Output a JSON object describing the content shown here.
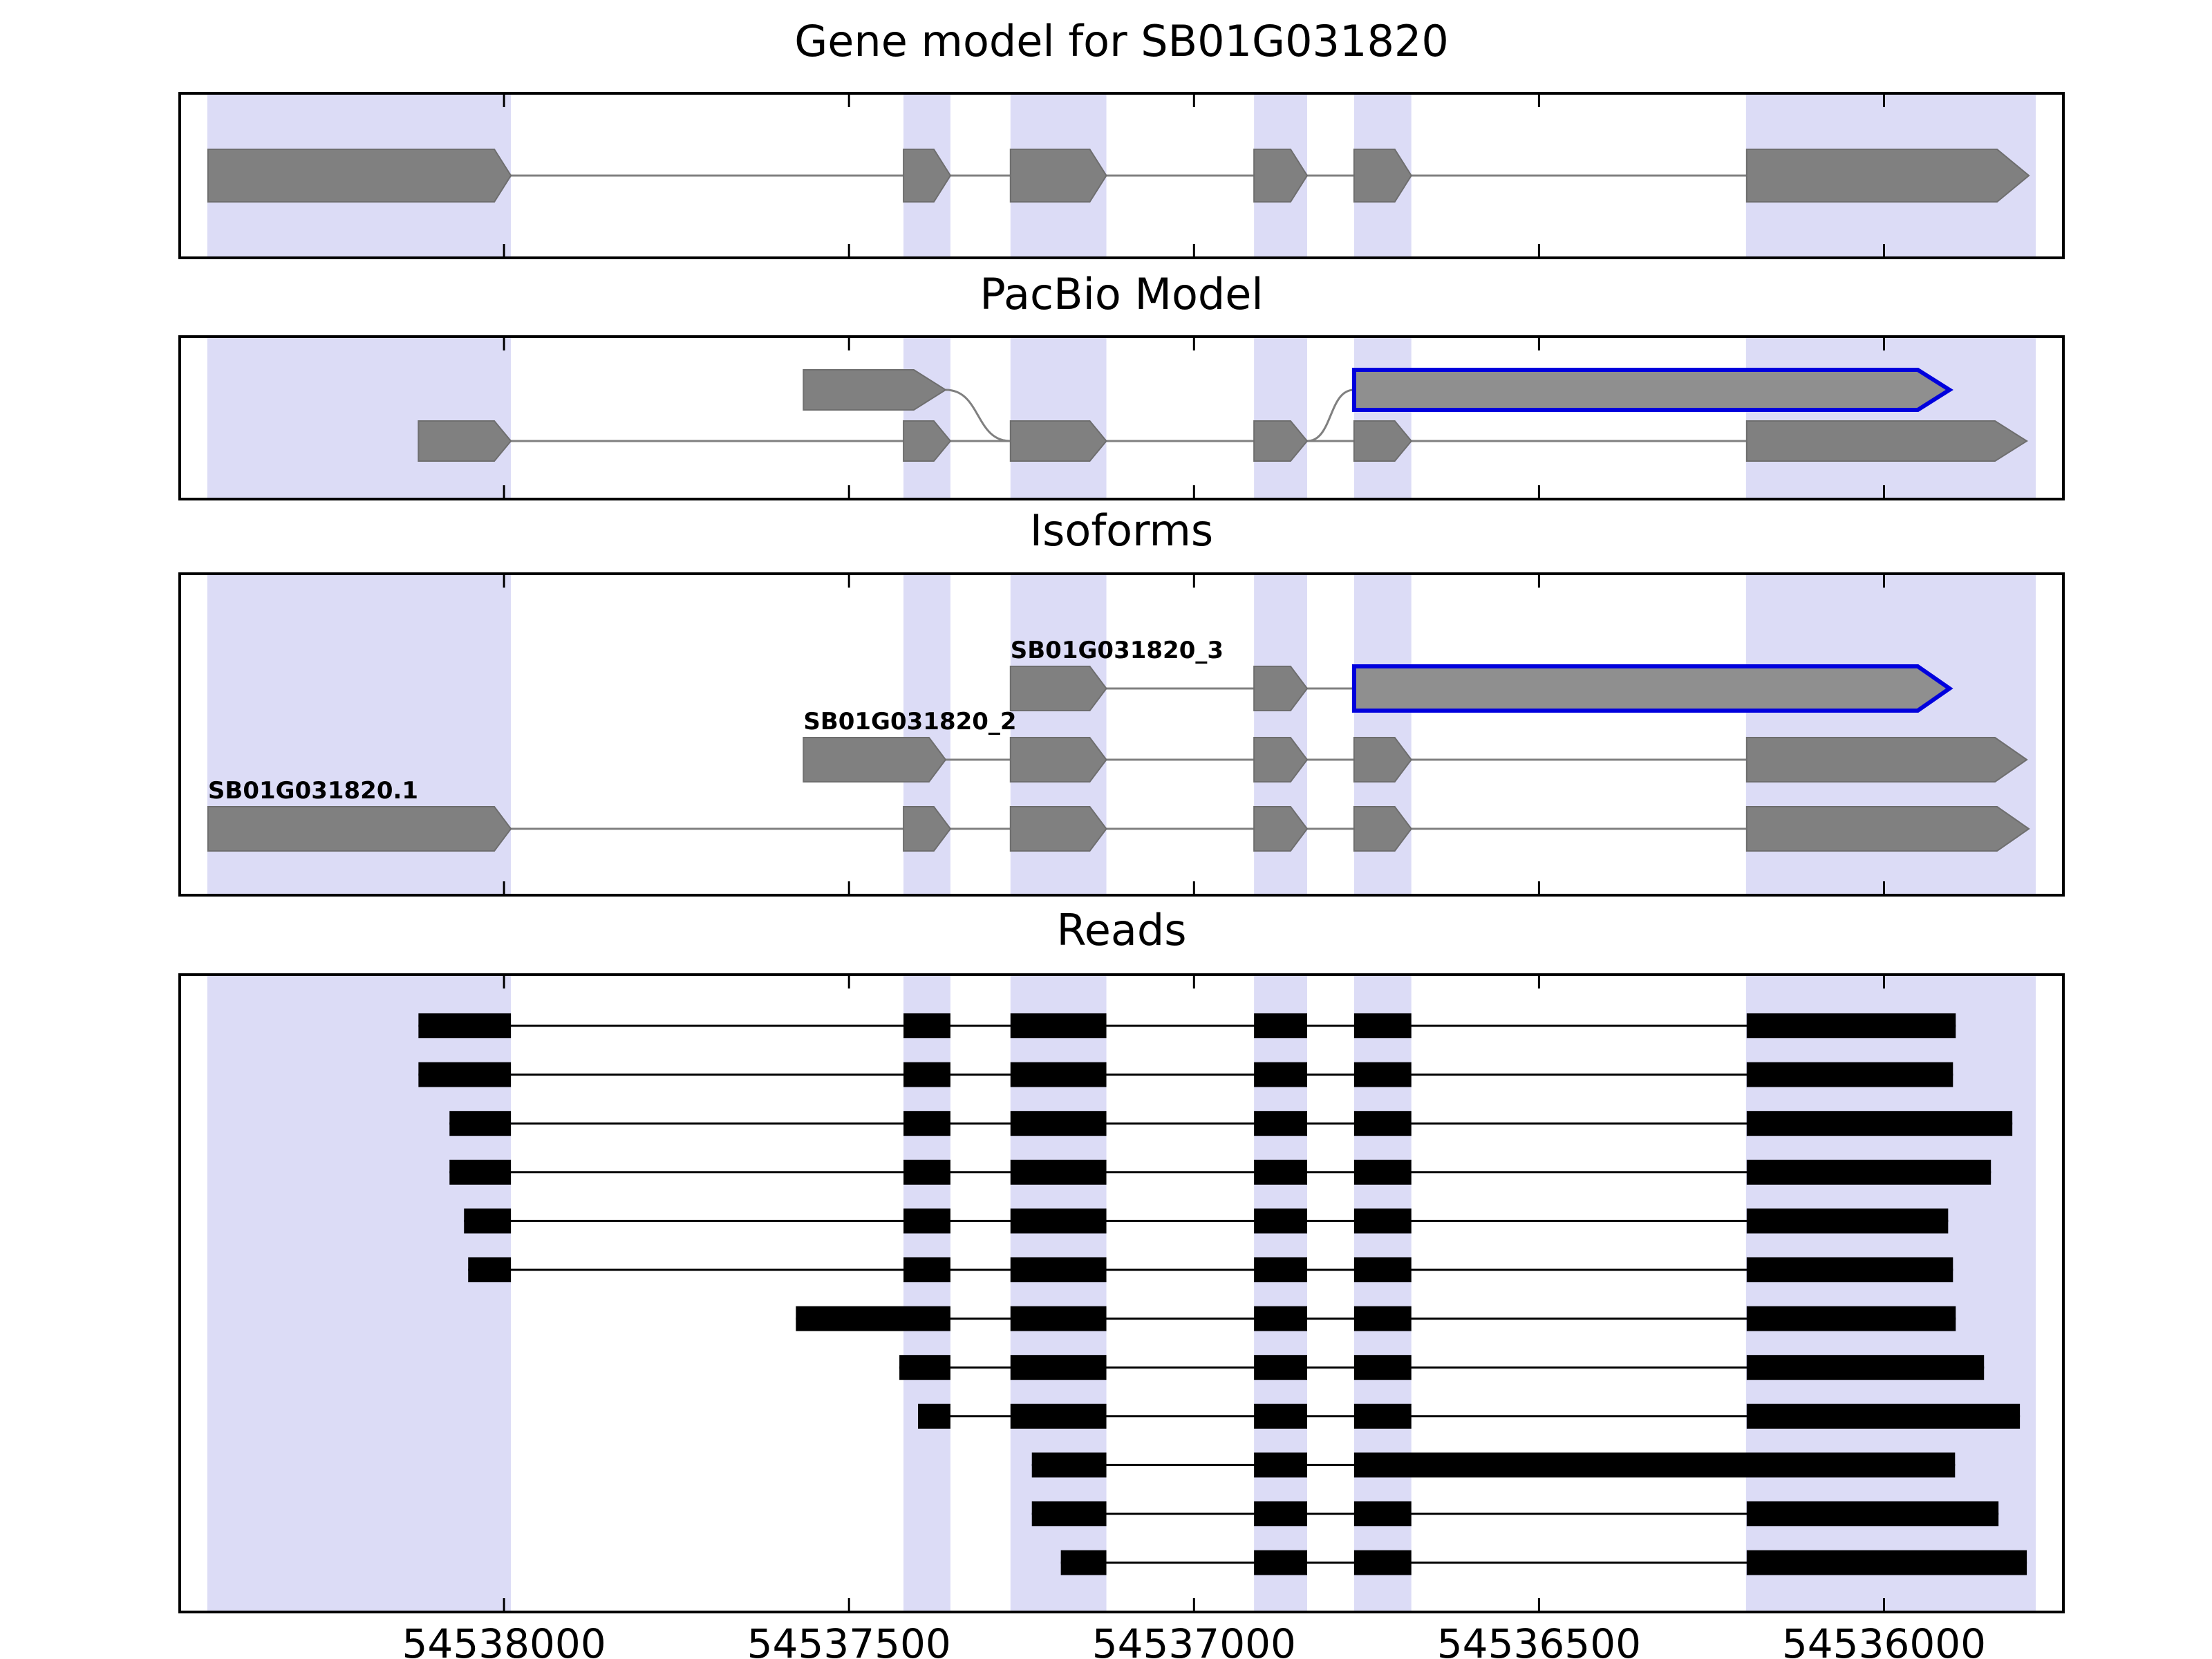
{
  "colors": {
    "background": "#ffffff",
    "panel_border": "#000000",
    "highlight_band": "#dcdcf6",
    "exon_fill": "#808080",
    "exon_stroke": "#6e6e6e",
    "intron_line": "#808080",
    "novel_fill": "#8f8f8f",
    "novel_outline": "#0000dd",
    "read_color": "#000000"
  },
  "chart_data": {
    "type": "genomic-tracks",
    "title": "Gene model for SB01G031820",
    "x_axis": {
      "orientation": "reversed",
      "left_coord": 54538470,
      "right_coord": 54535740,
      "ticks": [
        54538000,
        54537500,
        54537000,
        54536500,
        54536000
      ]
    },
    "highlight_regions": [
      [
        54538430,
        54537990
      ],
      [
        54537421,
        54537353
      ],
      [
        54537266,
        54537127
      ],
      [
        54536913,
        54536836
      ],
      [
        54536768,
        54536685
      ],
      [
        54536200,
        54535780
      ]
    ],
    "panels": {
      "gene_model": {
        "title": "Gene model for SB01G031820",
        "transcripts": [
          {
            "exons": [
              [
                54538429,
                54537990
              ],
              [
                54537421,
                54537353
              ],
              [
                54537266,
                54537127
              ],
              [
                54536913,
                54536836
              ],
              [
                54536768,
                54536685
              ],
              [
                54536199,
                54535790
              ]
            ],
            "arrow": true,
            "novel": []
          }
        ]
      },
      "pacbio_model": {
        "title": "PacBio Model",
        "features": [
          {
            "row": 0,
            "exons": [
              [
                54537566,
                54537360
              ]
            ],
            "arrow": true,
            "novel": []
          },
          {
            "row": 0,
            "exons": [
              [
                54536768,
                54535905
              ]
            ],
            "arrow": true,
            "novel": [
              0
            ]
          },
          {
            "row": 1,
            "exons": [
              [
                54538124,
                54537990
              ],
              [
                54537421,
                54537353
              ],
              [
                54537266,
                54537127
              ],
              [
                54536913,
                54536836
              ],
              [
                54536768,
                54536685
              ],
              [
                54536199,
                54535793
              ]
            ],
            "arrow": true,
            "novel": []
          }
        ],
        "connectors": [
          {
            "from": 54537360,
            "from_row": 0,
            "to": 54537266,
            "to_row": 1
          },
          {
            "from": 54536836,
            "from_row": 1,
            "to": 54536768,
            "to_row": 0
          }
        ]
      },
      "isoforms": {
        "title": "Isoforms",
        "transcripts": [
          {
            "name": "SB01G031820_3",
            "row": 0,
            "exons": [
              [
                54537266,
                54537127
              ],
              [
                54536913,
                54536836
              ],
              [
                54536768,
                54535905
              ]
            ],
            "arrow": true,
            "novel": [
              2
            ]
          },
          {
            "name": "SB01G031820_2",
            "row": 1,
            "exons": [
              [
                54537566,
                54537360
              ],
              [
                54537266,
                54537127
              ],
              [
                54536913,
                54536836
              ],
              [
                54536768,
                54536685
              ],
              [
                54536199,
                54535793
              ]
            ],
            "arrow": true,
            "novel": []
          },
          {
            "name": "SB01G031820.1",
            "row": 2,
            "exons": [
              [
                54538429,
                54537990
              ],
              [
                54537421,
                54537353
              ],
              [
                54537266,
                54537127
              ],
              [
                54536913,
                54536836
              ],
              [
                54536768,
                54536685
              ],
              [
                54536199,
                54535790
              ]
            ],
            "arrow": true,
            "novel": []
          }
        ]
      },
      "reads": {
        "title": "Reads",
        "reads": [
          [
            [
              54538124,
              54537990
            ],
            [
              54537421,
              54537353
            ],
            [
              54537266,
              54537127
            ],
            [
              54536913,
              54536836
            ],
            [
              54536768,
              54536685
            ],
            [
              54536199,
              54535896
            ]
          ],
          [
            [
              54538124,
              54537990
            ],
            [
              54537421,
              54537353
            ],
            [
              54537266,
              54537127
            ],
            [
              54536913,
              54536836
            ],
            [
              54536768,
              54536685
            ],
            [
              54536199,
              54535900
            ]
          ],
          [
            [
              54538079,
              54537990
            ],
            [
              54537421,
              54537353
            ],
            [
              54537266,
              54537127
            ],
            [
              54536913,
              54536836
            ],
            [
              54536768,
              54536685
            ],
            [
              54536199,
              54535814
            ]
          ],
          [
            [
              54538079,
              54537990
            ],
            [
              54537421,
              54537353
            ],
            [
              54537266,
              54537127
            ],
            [
              54536913,
              54536836
            ],
            [
              54536768,
              54536685
            ],
            [
              54536199,
              54535845
            ]
          ],
          [
            [
              54538058,
              54537990
            ],
            [
              54537421,
              54537353
            ],
            [
              54537266,
              54537127
            ],
            [
              54536913,
              54536836
            ],
            [
              54536768,
              54536685
            ],
            [
              54536199,
              54535907
            ]
          ],
          [
            [
              54538052,
              54537990
            ],
            [
              54537421,
              54537353
            ],
            [
              54537266,
              54537127
            ],
            [
              54536913,
              54536836
            ],
            [
              54536768,
              54536685
            ],
            [
              54536199,
              54535900
            ]
          ],
          [
            [
              54537577,
              54537353
            ],
            [
              54537266,
              54537127
            ],
            [
              54536913,
              54536836
            ],
            [
              54536768,
              54536685
            ],
            [
              54536199,
              54535896
            ]
          ],
          [
            [
              54537427,
              54537353
            ],
            [
              54537266,
              54537127
            ],
            [
              54536913,
              54536836
            ],
            [
              54536768,
              54536685
            ],
            [
              54536199,
              54535855
            ]
          ],
          [
            [
              54537400,
              54537353
            ],
            [
              54537266,
              54537127
            ],
            [
              54536913,
              54536836
            ],
            [
              54536768,
              54536685
            ],
            [
              54536199,
              54535803
            ]
          ],
          [
            [
              54537235,
              54537127
            ],
            [
              54536913,
              54536836
            ],
            [
              54536768,
              54535897
            ]
          ],
          [
            [
              54537235,
              54537127
            ],
            [
              54536913,
              54536836
            ],
            [
              54536768,
              54536685
            ],
            [
              54536199,
              54535834
            ]
          ],
          [
            [
              54537193,
              54537127
            ],
            [
              54536913,
              54536836
            ],
            [
              54536768,
              54536685
            ],
            [
              54536199,
              54535793
            ]
          ]
        ]
      }
    }
  }
}
